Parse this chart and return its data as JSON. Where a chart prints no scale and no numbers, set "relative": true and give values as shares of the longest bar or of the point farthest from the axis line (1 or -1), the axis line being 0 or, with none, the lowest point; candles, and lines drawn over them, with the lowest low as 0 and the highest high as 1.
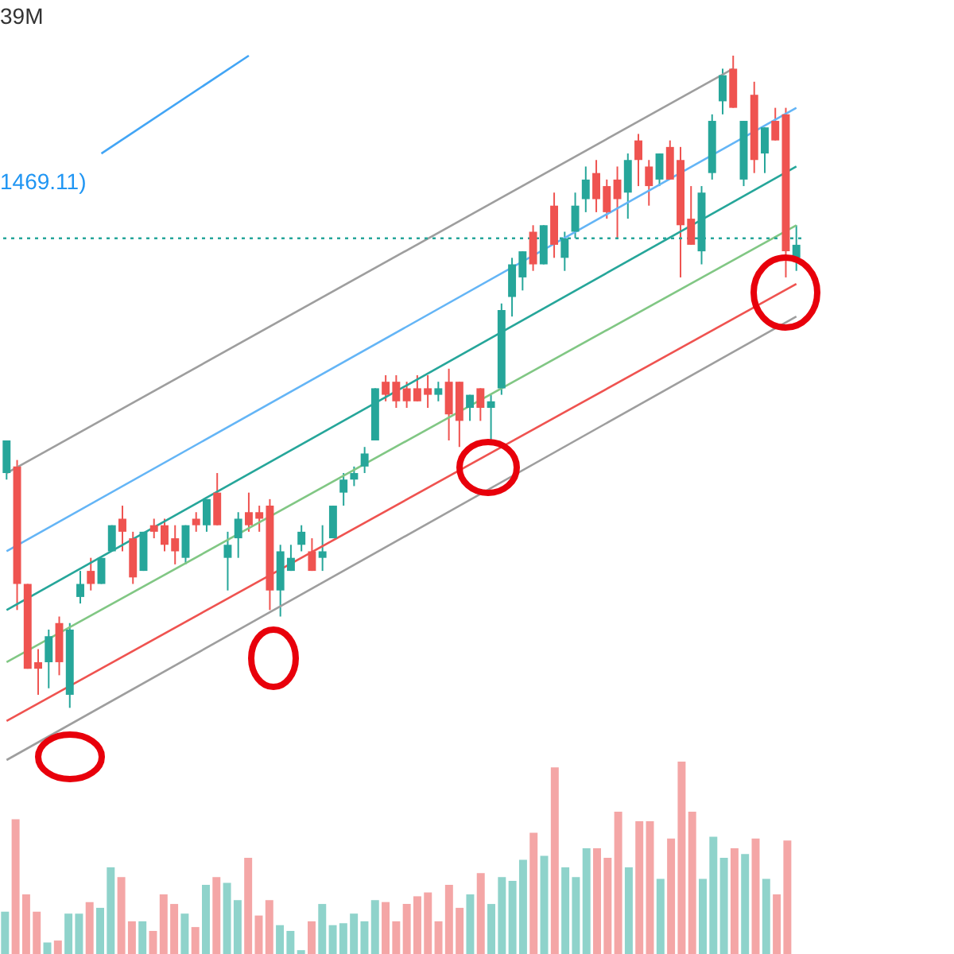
{
  "chart_data": [
    {
      "type": "candlestick",
      "relative": true,
      "categories": [
        null,
        null,
        null,
        null,
        null,
        null,
        null,
        null,
        null,
        null,
        null,
        null,
        null,
        null,
        null,
        null,
        null,
        null,
        null,
        null,
        null,
        null,
        null,
        null,
        null,
        null,
        null,
        null,
        null,
        null,
        null,
        null,
        null,
        null,
        null,
        null,
        null,
        null,
        null,
        null,
        null,
        null,
        null,
        null,
        null,
        null,
        null,
        null,
        null,
        null,
        null,
        null,
        null,
        null,
        null,
        null,
        null,
        null,
        null,
        null,
        null,
        null,
        null,
        null,
        null,
        null,
        null,
        null,
        null,
        null,
        null,
        null,
        null,
        null,
        null,
        null
      ],
      "ohlc": [
        [
          0.36,
          0.41,
          0.35,
          0.41
        ],
        [
          0.37,
          0.38,
          0.15,
          0.19
        ],
        [
          0.19,
          0.19,
          0.06,
          0.06
        ],
        [
          0.07,
          0.09,
          0.02,
          0.06
        ],
        [
          0.07,
          0.12,
          0.03,
          0.11
        ],
        [
          0.13,
          0.14,
          0.05,
          0.07
        ],
        [
          0.02,
          0.13,
          0,
          0.12
        ],
        [
          0.17,
          0.21,
          0.16,
          0.19
        ],
        [
          0.21,
          0.23,
          0.18,
          0.19
        ],
        [
          0.19,
          0.23,
          0.19,
          0.23
        ],
        [
          0.24,
          0.28,
          0.24,
          0.28
        ],
        [
          0.29,
          0.31,
          0.24,
          0.27
        ],
        [
          0.26,
          0.27,
          0.19,
          0.2
        ],
        [
          0.21,
          0.27,
          0.21,
          0.27
        ],
        [
          0.28,
          0.29,
          0.26,
          0.27
        ],
        [
          0.28,
          0.29,
          0.24,
          0.25
        ],
        [
          0.26,
          0.28,
          0.22,
          0.24
        ],
        [
          0.23,
          0.28,
          0.22,
          0.28
        ],
        [
          0.29,
          0.3,
          0.27,
          0.28
        ],
        [
          0.28,
          0.32,
          0.27,
          0.32
        ],
        [
          0.33,
          0.36,
          0.28,
          0.28
        ],
        [
          0.23,
          0.27,
          0.18,
          0.25
        ],
        [
          0.26,
          0.3,
          0.23,
          0.29
        ],
        [
          0.3,
          0.33,
          0.27,
          0.28
        ],
        [
          0.3,
          0.31,
          0.27,
          0.29
        ],
        [
          0.31,
          0.32,
          0.15,
          0.18
        ],
        [
          0.18,
          0.25,
          0.14,
          0.24
        ],
        [
          0.21,
          0.25,
          0.21,
          0.23
        ],
        [
          0.25,
          0.28,
          0.24,
          0.27
        ],
        [
          0.24,
          0.26,
          0.21,
          0.21
        ],
        [
          0.23,
          0.28,
          0.21,
          0.24
        ],
        [
          0.26,
          0.31,
          0.26,
          0.31
        ],
        [
          0.33,
          0.36,
          0.31,
          0.35
        ],
        [
          0.35,
          0.37,
          0.34,
          0.36
        ],
        [
          0.37,
          0.4,
          0.36,
          0.39
        ],
        [
          0.41,
          0.49,
          0.41,
          0.49
        ],
        [
          0.5,
          0.51,
          0.47,
          0.48
        ],
        [
          0.5,
          0.51,
          0.46,
          0.47
        ],
        [
          0.49,
          0.5,
          0.46,
          0.47
        ],
        [
          0.49,
          0.51,
          0.47,
          0.47
        ],
        [
          0.49,
          0.51,
          0.46,
          0.48
        ],
        [
          0.48,
          0.5,
          0.47,
          0.49
        ],
        [
          0.5,
          0.52,
          0.41,
          0.45
        ],
        [
          0.5,
          0.5,
          0.4,
          0.44
        ],
        [
          0.46,
          0.48,
          0.44,
          0.48
        ],
        [
          0.49,
          0.49,
          0.44,
          0.46
        ],
        [
          0.46,
          0.48,
          0.41,
          0.47
        ],
        [
          0.49,
          0.62,
          0.48,
          0.61
        ],
        [
          0.63,
          0.69,
          0.6,
          0.68
        ],
        [
          0.66,
          0.7,
          0.64,
          0.7
        ],
        [
          0.73,
          0.74,
          0.67,
          0.68
        ],
        [
          0.68,
          0.74,
          0.68,
          0.74
        ],
        [
          0.77,
          0.79,
          0.69,
          0.71
        ],
        [
          0.69,
          0.73,
          0.67,
          0.72
        ],
        [
          0.73,
          0.79,
          0.72,
          0.77
        ],
        [
          0.78,
          0.83,
          0.76,
          0.81
        ],
        [
          0.82,
          0.84,
          0.76,
          0.78
        ],
        [
          0.8,
          0.81,
          0.75,
          0.76
        ],
        [
          0.81,
          0.83,
          0.72,
          0.78
        ],
        [
          0.79,
          0.85,
          0.75,
          0.84
        ],
        [
          0.87,
          0.88,
          0.8,
          0.84
        ],
        [
          0.83,
          0.84,
          0.77,
          0.8
        ],
        [
          0.81,
          0.85,
          0.8,
          0.85
        ],
        [
          0.86,
          0.87,
          0.81,
          0.81
        ],
        [
          0.84,
          0.86,
          0.66,
          0.74
        ],
        [
          0.75,
          0.8,
          0.71,
          0.71
        ],
        [
          0.7,
          0.8,
          0.68,
          0.79
        ],
        [
          0.82,
          0.91,
          0.81,
          0.9
        ],
        [
          0.93,
          0.98,
          0.91,
          0.97
        ],
        [
          0.98,
          1,
          0.92,
          0.92
        ],
        [
          0.81,
          0.9,
          0.8,
          0.9
        ],
        [
          0.94,
          0.96,
          0.82,
          0.84
        ],
        [
          0.85,
          0.89,
          0.82,
          0.89
        ],
        [
          0.9,
          0.92,
          0.87,
          0.87
        ],
        [
          0.91,
          0.92,
          0.66,
          0.7
        ],
        [
          0.69,
          0.74,
          0.67,
          0.71
        ]
      ],
      "colors": [
        "#26a69a",
        "#ef5350",
        "#ef5350",
        "#ef5350",
        "#26a69a",
        "#ef5350",
        "#26a69a",
        "#26a69a",
        "#ef5350",
        "#26a69a",
        "#26a69a",
        "#ef5350",
        "#ef5350",
        "#26a69a",
        "#ef5350",
        "#ef5350",
        "#ef5350",
        "#26a69a",
        "#ef5350",
        "#26a69a",
        "#ef5350",
        "#26a69a",
        "#26a69a",
        "#ef5350",
        "#ef5350",
        "#ef5350",
        "#26a69a",
        "#26a69a",
        "#26a69a",
        "#ef5350",
        "#26a69a",
        "#26a69a",
        "#26a69a",
        "#26a69a",
        "#26a69a",
        "#26a69a",
        "#ef5350",
        "#ef5350",
        "#ef5350",
        "#ef5350",
        "#ef5350",
        "#26a69a",
        "#ef5350",
        "#ef5350",
        "#26a69a",
        "#ef5350",
        "#26a69a",
        "#26a69a",
        "#26a69a",
        "#26a69a",
        "#ef5350",
        "#26a69a",
        "#ef5350",
        "#26a69a",
        "#26a69a",
        "#26a69a",
        "#ef5350",
        "#ef5350",
        "#ef5350",
        "#26a69a",
        "#ef5350",
        "#ef5350",
        "#26a69a",
        "#ef5350",
        "#ef5350",
        "#ef5350",
        "#26a69a",
        "#26a69a",
        "#26a69a",
        "#ef5350",
        "#26a69a",
        "#ef5350",
        "#26a69a",
        "#ef5350",
        "#ef5350",
        "#26a69a"
      ],
      "series": [
        {
          "type": "line",
          "color": "#9e9e9e",
          "values": [
            -0.08,
            null,
            null,
            null,
            null,
            null,
            null,
            null,
            null,
            null,
            null,
            null,
            null,
            null,
            null,
            null,
            null,
            null,
            null,
            null,
            null,
            null,
            null,
            null,
            null,
            null,
            null,
            null,
            null,
            null,
            null,
            null,
            null,
            null,
            null,
            null,
            null,
            null,
            null,
            null,
            null,
            null,
            null,
            null,
            null,
            null,
            null,
            null,
            null,
            null,
            null,
            null,
            null,
            null,
            null,
            null,
            null,
            null,
            null,
            null,
            null,
            null,
            null,
            null,
            null,
            null,
            null,
            null,
            null,
            null,
            null,
            null,
            null,
            null,
            null,
            0.6
          ]
        },
        {
          "type": "line",
          "color": "#ef5350",
          "values": [
            -0.02,
            null,
            null,
            null,
            null,
            null,
            null,
            null,
            null,
            null,
            null,
            null,
            null,
            null,
            null,
            null,
            null,
            null,
            null,
            null,
            null,
            null,
            null,
            null,
            null,
            null,
            null,
            null,
            null,
            null,
            null,
            null,
            null,
            null,
            null,
            null,
            null,
            null,
            null,
            null,
            null,
            null,
            null,
            null,
            null,
            null,
            null,
            null,
            null,
            null,
            null,
            null,
            null,
            null,
            null,
            null,
            null,
            null,
            null,
            null,
            null,
            null,
            null,
            null,
            null,
            null,
            null,
            null,
            null,
            null,
            null,
            null,
            null,
            null,
            null,
            0.65
          ]
        },
        {
          "type": "line",
          "color": "#81c784",
          "values": [
            0.07,
            null,
            null,
            null,
            null,
            null,
            null,
            null,
            null,
            null,
            null,
            null,
            null,
            null,
            null,
            null,
            null,
            null,
            null,
            null,
            null,
            null,
            null,
            null,
            null,
            null,
            null,
            null,
            null,
            null,
            null,
            null,
            null,
            null,
            null,
            null,
            null,
            null,
            null,
            null,
            null,
            null,
            null,
            null,
            null,
            null,
            null,
            null,
            null,
            null,
            null,
            null,
            null,
            null,
            null,
            null,
            null,
            null,
            null,
            null,
            null,
            null,
            null,
            null,
            null,
            null,
            null,
            null,
            null,
            null,
            null,
            null,
            null,
            null,
            null,
            0.74
          ]
        },
        {
          "type": "line",
          "color": "#26a69a",
          "values": [
            0.15,
            null,
            null,
            null,
            null,
            null,
            null,
            null,
            null,
            null,
            null,
            null,
            null,
            null,
            null,
            null,
            null,
            null,
            null,
            null,
            null,
            null,
            null,
            null,
            null,
            null,
            null,
            null,
            null,
            null,
            null,
            null,
            null,
            null,
            null,
            null,
            null,
            null,
            null,
            null,
            null,
            null,
            null,
            null,
            null,
            null,
            null,
            null,
            null,
            null,
            null,
            null,
            null,
            null,
            null,
            null,
            null,
            null,
            null,
            null,
            null,
            null,
            null,
            null,
            null,
            null,
            null,
            null,
            null,
            null,
            null,
            null,
            null,
            null,
            null,
            0.83
          ]
        },
        {
          "type": "line",
          "color": "#64b5f6",
          "values": [
            0.24,
            null,
            null,
            null,
            null,
            null,
            null,
            null,
            null,
            null,
            null,
            null,
            null,
            null,
            null,
            null,
            null,
            null,
            null,
            null,
            null,
            null,
            null,
            null,
            null,
            null,
            null,
            null,
            null,
            null,
            null,
            null,
            null,
            null,
            null,
            null,
            null,
            null,
            null,
            null,
            null,
            null,
            null,
            null,
            null,
            null,
            null,
            null,
            null,
            null,
            null,
            null,
            null,
            null,
            null,
            null,
            null,
            null,
            null,
            null,
            null,
            null,
            null,
            null,
            null,
            null,
            null,
            null,
            null,
            null,
            null,
            null,
            null,
            null,
            null,
            0.92
          ]
        },
        {
          "type": "line",
          "color": "#9e9e9e",
          "values": [
            0.36,
            null,
            null,
            null,
            null,
            null,
            null,
            null,
            null,
            null,
            null,
            null,
            null,
            null,
            null,
            null,
            null,
            null,
            null,
            null,
            null,
            null,
            null,
            null,
            null,
            null,
            null,
            null,
            null,
            null,
            null,
            null,
            null,
            null,
            null,
            null,
            null,
            null,
            null,
            null,
            null,
            null,
            null,
            null,
            null,
            null,
            null,
            null,
            null,
            null,
            null,
            null,
            null,
            null,
            null,
            null,
            null,
            null,
            null,
            null,
            null,
            null,
            null,
            null,
            null,
            null,
            null,
            null,
            null,
            0.98,
            null,
            null,
            null,
            null,
            null,
            null
          ]
        },
        {
          "type": "line",
          "color": "#42a5f5",
          "values": [
            null,
            null,
            null,
            null,
            null,
            null,
            null,
            null,
            null,
            0.85,
            null,
            null,
            null,
            null,
            null,
            null,
            null,
            null,
            null,
            null,
            null,
            null,
            null,
            1,
            null,
            null,
            null,
            null,
            null,
            null,
            null,
            null,
            null,
            null,
            null,
            null,
            null,
            null,
            null,
            null,
            null,
            null,
            null,
            null,
            null,
            null,
            null,
            null,
            null,
            null,
            null,
            null,
            null,
            null,
            null,
            null,
            null,
            null,
            null,
            null,
            null,
            null,
            null,
            null,
            null,
            null,
            null,
            null,
            null,
            null,
            null,
            null,
            null,
            null,
            null,
            null
          ]
        }
      ],
      "ref_lines": [
        {
          "axis": "y",
          "value": 0.72,
          "color": "#26a69a",
          "line_style": "dotted"
        }
      ],
      "annotations": [
        "39M",
        "1469.11)"
      ]
    },
    {
      "type": "bar",
      "relative": true,
      "categories": [
        null,
        null,
        null,
        null,
        null,
        null,
        null,
        null,
        null,
        null,
        null,
        null,
        null,
        null,
        null,
        null,
        null,
        null,
        null,
        null,
        null,
        null,
        null,
        null,
        null,
        null,
        null,
        null,
        null,
        null,
        null,
        null,
        null,
        null,
        null,
        null,
        null,
        null,
        null,
        null,
        null,
        null,
        null,
        null,
        null,
        null,
        null,
        null,
        null,
        null,
        null,
        null,
        null,
        null,
        null,
        null,
        null,
        null,
        null,
        null,
        null,
        null,
        null,
        null,
        null,
        null,
        null,
        null,
        null,
        null,
        null,
        null,
        null,
        null,
        null,
        null
      ],
      "values": [
        0.22,
        0.7,
        0.31,
        0.22,
        0.06,
        0.07,
        0.21,
        0.21,
        0.27,
        0.24,
        0.45,
        0.4,
        0.17,
        0.17,
        0.12,
        0.31,
        0.26,
        0.21,
        0.14,
        0.36,
        0.4,
        0.37,
        0.28,
        0.5,
        0.2,
        0.28,
        0.15,
        0.12,
        0.02,
        0.17,
        0.26,
        0.15,
        0.16,
        0.21,
        0.17,
        0.28,
        0.27,
        0.17,
        0.26,
        0.3,
        0.32,
        0.17,
        0.36,
        0.24,
        0.31,
        0.42,
        0.26,
        0.4,
        0.38,
        0.49,
        0.63,
        0.51,
        0.97,
        0.45,
        0.4,
        0.55,
        0.55,
        0.5,
        0.74,
        0.45,
        0.69,
        0.69,
        0.39,
        0.6,
        1,
        0.74,
        0.39,
        0.61,
        0.5,
        0.55,
        0.52,
        0.6,
        0.39,
        0.31,
        0.59,
        null
      ],
      "colors": [
        "#8fd3cb",
        "#f4a6a6",
        "#f4a6a6",
        "#f4a6a6",
        "#8fd3cb",
        "#f4a6a6",
        "#8fd3cb",
        "#8fd3cb",
        "#f4a6a6",
        "#8fd3cb",
        "#8fd3cb",
        "#f4a6a6",
        "#f4a6a6",
        "#8fd3cb",
        "#f4a6a6",
        "#f4a6a6",
        "#f4a6a6",
        "#8fd3cb",
        "#f4a6a6",
        "#8fd3cb",
        "#f4a6a6",
        "#8fd3cb",
        "#8fd3cb",
        "#f4a6a6",
        "#f4a6a6",
        "#f4a6a6",
        "#8fd3cb",
        "#8fd3cb",
        "#8fd3cb",
        "#f4a6a6",
        "#8fd3cb",
        "#8fd3cb",
        "#8fd3cb",
        "#8fd3cb",
        "#8fd3cb",
        "#8fd3cb",
        "#f4a6a6",
        "#f4a6a6",
        "#f4a6a6",
        "#f4a6a6",
        "#f4a6a6",
        "#f4a6a6",
        "#f4a6a6",
        "#f4a6a6",
        "#8fd3cb",
        "#f4a6a6",
        "#8fd3cb",
        "#8fd3cb",
        "#8fd3cb",
        "#8fd3cb",
        "#f4a6a6",
        "#8fd3cb",
        "#f4a6a6",
        "#8fd3cb",
        "#8fd3cb",
        "#8fd3cb",
        "#f4a6a6",
        "#f4a6a6",
        "#f4a6a6",
        "#8fd3cb",
        "#f4a6a6",
        "#f4a6a6",
        "#8fd3cb",
        "#f4a6a6",
        "#f4a6a6",
        "#f4a6a6",
        "#8fd3cb",
        "#8fd3cb",
        "#8fd3cb",
        "#f4a6a6",
        "#8fd3cb",
        "#f4a6a6",
        "#8fd3cb",
        "#f4a6a6",
        "#f4a6a6",
        "#8fd3cb"
      ]
    }
  ]
}
